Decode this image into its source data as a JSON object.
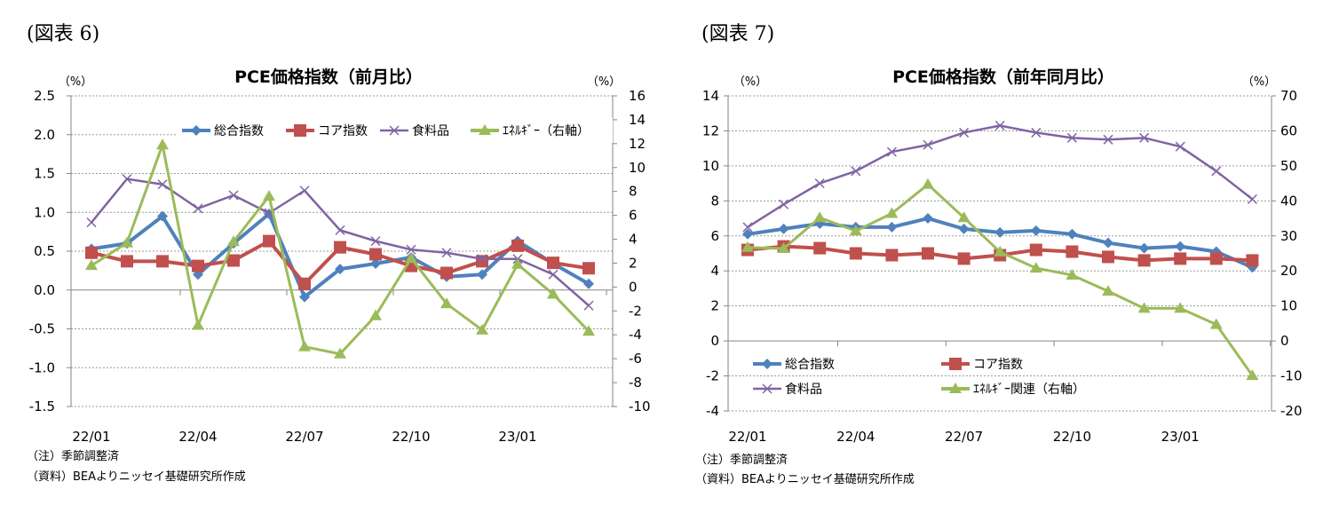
{
  "colors": {
    "total": "#4f81bd",
    "core": "#c0504d",
    "food": "#8064a2",
    "energy": "#9bbb59"
  },
  "chart_data": [
    {
      "type": "line",
      "figure_label": "(図表 6)",
      "title": "PCE価格指数（前月比）",
      "left_unit": "（%）",
      "right_unit": "（%）",
      "ylim": [
        -1.5,
        2.5
      ],
      "y_ticks": [
        "2.5",
        "2.0",
        "1.5",
        "1.0",
        "0.5",
        "0.0",
        "-0.5",
        "-1.0",
        "-1.5"
      ],
      "y2lim": [
        -10,
        16
      ],
      "y2_ticks": [
        "16",
        "14",
        "12",
        "10",
        "8",
        "6",
        "4",
        "2",
        "0",
        "-2",
        "-4",
        "-6",
        "-8",
        "-10"
      ],
      "x": [
        "22/01",
        "22/02",
        "22/03",
        "22/04",
        "22/05",
        "22/06",
        "22/07",
        "22/08",
        "22/09",
        "22/10",
        "22/11",
        "22/12",
        "23/01",
        "23/02",
        "23/03"
      ],
      "x_tick_labels": [
        "22/01",
        "22/04",
        "22/07",
        "22/10",
        "23/01"
      ],
      "grid": true,
      "legend_placement": "top",
      "series": [
        {
          "name": "総合指数",
          "axis": "left",
          "marker": "diamond",
          "color_key": "total",
          "values": [
            0.53,
            0.6,
            0.95,
            0.2,
            0.6,
            0.98,
            -0.09,
            0.27,
            0.34,
            0.42,
            0.17,
            0.2,
            0.63,
            0.34,
            0.08
          ]
        },
        {
          "name": "コア指数",
          "axis": "left",
          "marker": "square",
          "color_key": "core",
          "values": [
            0.48,
            0.37,
            0.37,
            0.31,
            0.38,
            0.63,
            0.08,
            0.55,
            0.46,
            0.31,
            0.22,
            0.37,
            0.57,
            0.35,
            0.28
          ]
        },
        {
          "name": "食料品",
          "axis": "left",
          "marker": "x",
          "color_key": "food",
          "values": [
            0.87,
            1.43,
            1.36,
            1.05,
            1.22,
            0.99,
            1.28,
            0.77,
            0.63,
            0.52,
            0.48,
            0.4,
            0.4,
            0.2,
            -0.2
          ]
        },
        {
          "name": "ｴﾈﾙｷﾞｰ（右軸）",
          "axis": "right",
          "marker": "triangle",
          "color_key": "energy",
          "values": [
            1.8,
            3.7,
            11.9,
            -3.2,
            3.8,
            7.6,
            -5.0,
            -5.6,
            -2.4,
            2.4,
            -1.4,
            -3.6,
            1.9,
            -0.6,
            -3.7
          ]
        }
      ],
      "notes": [
        "（注）季節調整済",
        "（資料）BEAよりニッセイ基礎研究所作成"
      ]
    },
    {
      "type": "line",
      "figure_label": "(図表 7)",
      "title": "PCE価格指数（前年同月比）",
      "left_unit": "（%）",
      "right_unit": "（%）",
      "ylim": [
        -4,
        14
      ],
      "y_ticks": [
        "14",
        "12",
        "10",
        "8",
        "6",
        "4",
        "2",
        "0",
        "-2",
        "-4"
      ],
      "y2lim": [
        -20,
        70
      ],
      "y2_ticks": [
        "70",
        "60",
        "50",
        "40",
        "30",
        "20",
        "10",
        "0",
        "-10",
        "-20"
      ],
      "x": [
        "22/01",
        "22/02",
        "22/03",
        "22/04",
        "22/05",
        "22/06",
        "22/07",
        "22/08",
        "22/09",
        "22/10",
        "22/11",
        "22/12",
        "23/01",
        "23/02",
        "23/03"
      ],
      "x_tick_labels": [
        "22/01",
        "22/04",
        "22/07",
        "22/10",
        "23/01"
      ],
      "grid": true,
      "legend_placement": "bottom-left",
      "series": [
        {
          "name": "総合指数",
          "axis": "left",
          "marker": "diamond",
          "color_key": "total",
          "values": [
            6.1,
            6.4,
            6.7,
            6.5,
            6.5,
            7.0,
            6.4,
            6.2,
            6.3,
            6.1,
            5.6,
            5.3,
            5.4,
            5.1,
            4.2
          ]
        },
        {
          "name": "コア指数",
          "axis": "left",
          "marker": "square",
          "color_key": "core",
          "values": [
            5.2,
            5.4,
            5.3,
            5.0,
            4.9,
            5.0,
            4.7,
            4.9,
            5.2,
            5.1,
            4.8,
            4.6,
            4.7,
            4.7,
            4.6
          ]
        },
        {
          "name": "食料品",
          "axis": "left",
          "marker": "x",
          "color_key": "food",
          "values": [
            6.5,
            7.8,
            9.0,
            9.7,
            10.8,
            11.2,
            11.9,
            12.3,
            11.9,
            11.6,
            11.5,
            11.6,
            11.1,
            9.7,
            8.1
          ]
        },
        {
          "name": "ｴﾈﾙｷﾞｰ関連（右軸）",
          "axis": "right",
          "marker": "triangle",
          "color_key": "energy",
          "values": [
            26.7,
            26.4,
            35.2,
            31.4,
            36.4,
            44.7,
            35.2,
            25.4,
            20.8,
            18.8,
            14.2,
            9.3,
            9.3,
            4.7,
            -9.9
          ]
        }
      ],
      "notes": [
        "（注）季節調整済",
        "（資料）BEAよりニッセイ基礎研究所作成"
      ]
    }
  ]
}
